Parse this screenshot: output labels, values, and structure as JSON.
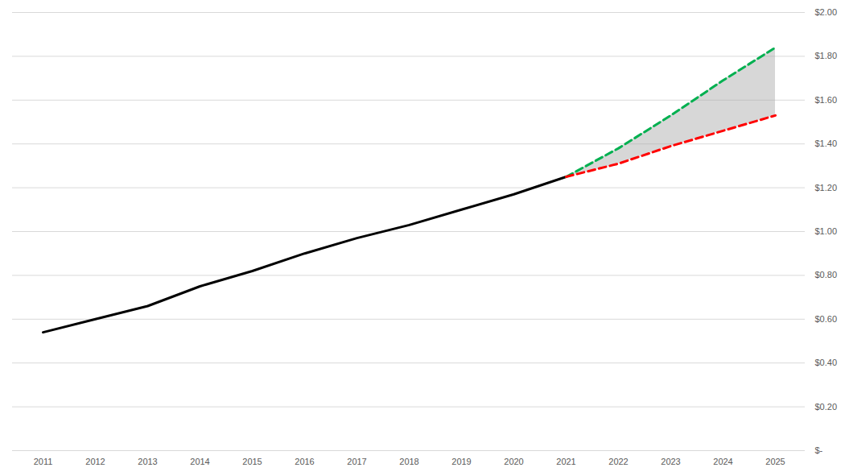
{
  "chart_data": {
    "type": "line",
    "categories": [
      "2011",
      "2012",
      "2013",
      "2014",
      "2015",
      "2016",
      "2017",
      "2018",
      "2019",
      "2020",
      "2021",
      "2022",
      "2023",
      "2024",
      "2025"
    ],
    "series": [
      {
        "color": "#000000",
        "line_style": "solid",
        "values": [
          0.54,
          0.6,
          0.66,
          0.75,
          0.82,
          0.9,
          0.97,
          1.03,
          1.1,
          1.17,
          1.25,
          null,
          null,
          null,
          null
        ]
      },
      {
        "color": "#00b050",
        "line_style": "dashed",
        "values": [
          null,
          null,
          null,
          null,
          null,
          null,
          null,
          null,
          null,
          null,
          1.25,
          1.38,
          1.53,
          1.69,
          1.84
        ]
      },
      {
        "color": "#ff0000",
        "line_style": "dashed",
        "values": [
          null,
          null,
          null,
          null,
          null,
          null,
          null,
          null,
          null,
          null,
          1.25,
          1.31,
          1.39,
          1.46,
          1.53
        ]
      }
    ],
    "ylim": [
      0,
      2
    ],
    "yticks": [
      {
        "value": 0,
        "label": "$-"
      },
      {
        "value": 0.2,
        "label": "$0.20"
      },
      {
        "value": 0.4,
        "label": "$0.40"
      },
      {
        "value": 0.6,
        "label": "$0.60"
      },
      {
        "value": 0.8,
        "label": "$0.80"
      },
      {
        "value": 1.0,
        "label": "$1.00"
      },
      {
        "value": 1.2,
        "label": "$1.20"
      },
      {
        "value": 1.4,
        "label": "$1.40"
      },
      {
        "value": 1.6,
        "label": "$1.60"
      },
      {
        "value": 1.8,
        "label": "$1.80"
      },
      {
        "value": 2.0,
        "label": "$2.00"
      }
    ],
    "grid": true
  }
}
